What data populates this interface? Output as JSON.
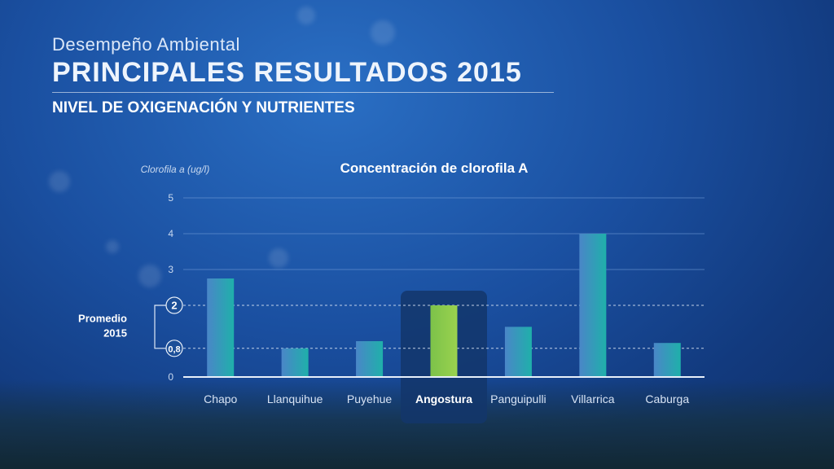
{
  "header": {
    "subtitle": "Desempeño Ambiental",
    "title": "PRINCIPALES RESULTADOS 2015",
    "section": "NIVEL DE OXIGENACIÓN Y NUTRIENTES"
  },
  "colors": {
    "bar_default": "#27a9b3",
    "bar_highlight": "#8cc94a",
    "highlight_box": "#13366b",
    "gridline": "#6f9ad6",
    "axis": "#e8f0fa"
  },
  "chart_data": {
    "type": "bar",
    "title": "Concentración de clorofila A",
    "ylabel": "Clorofila a (ug/l)",
    "xlabel": "",
    "ylim": [
      0,
      5
    ],
    "yticks": [
      0,
      3,
      4,
      5
    ],
    "categories": [
      "Chapo",
      "Llanquihue",
      "Puyehue",
      "Angostura",
      "Panguipulli",
      "Villarrica",
      "Caburga"
    ],
    "values": [
      2.75,
      0.8,
      1.0,
      2.0,
      1.4,
      4.0,
      0.95
    ],
    "highlight_category": "Angostura",
    "grid": true,
    "reference_lines": [
      {
        "value": 2,
        "label": "2"
      },
      {
        "value": 0.8,
        "label": "0,8"
      }
    ],
    "reference_group_label": [
      "Promedio",
      "2015"
    ]
  }
}
